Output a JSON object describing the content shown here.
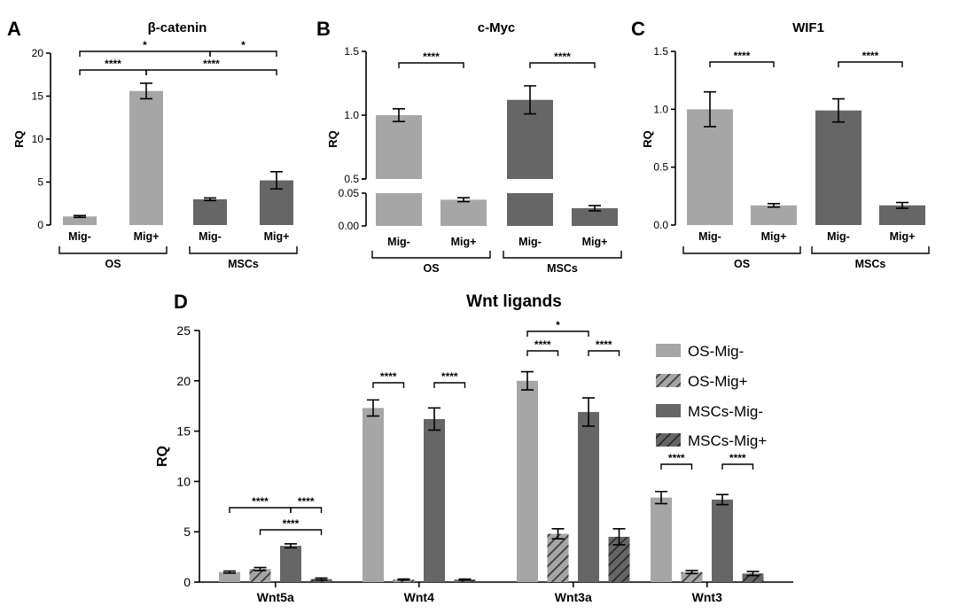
{
  "colors": {
    "light": "#a6a6a6",
    "dark": "#666666",
    "hatch_stroke": "#3a3a3a"
  },
  "chart_data": [
    {
      "panel": "A",
      "type": "bar",
      "title": "β-catenin",
      "ylabel": "RQ",
      "ylim": [
        0,
        20
      ],
      "yticks": [
        0,
        5,
        10,
        15,
        20
      ],
      "categories": [
        "Mig-",
        "Mig+",
        "Mig-",
        "Mig+"
      ],
      "groups": [
        "OS",
        "MSCs"
      ],
      "values": [
        1.0,
        15.6,
        3.0,
        5.2
      ],
      "errors": [
        0.1,
        0.9,
        0.15,
        1.0
      ],
      "fill": [
        "light",
        "light",
        "dark",
        "dark"
      ],
      "significance": [
        {
          "from": 0,
          "to": 1,
          "label": "****"
        },
        {
          "from": 1,
          "to": 3,
          "label": "****"
        },
        {
          "from": 0,
          "to": 2,
          "label": "*"
        },
        {
          "from": 2,
          "to": 3,
          "label": "*"
        }
      ]
    },
    {
      "panel": "B",
      "type": "bar",
      "title": "c-Myc",
      "ylabel": "RQ",
      "broken_axis": true,
      "lower_ylim": [
        0,
        0.05
      ],
      "upper_ylim": [
        0.5,
        1.5
      ],
      "yticks_lower": [
        "0.00",
        "0.05"
      ],
      "yticks_upper": [
        "0.5",
        "1.0",
        "1.5"
      ],
      "categories": [
        "Mig-",
        "Mig+",
        "Mig-",
        "Mig+"
      ],
      "groups": [
        "OS",
        "MSCs"
      ],
      "values": [
        1.0,
        0.04,
        1.12,
        0.027
      ],
      "errors": [
        0.05,
        0.003,
        0.11,
        0.004
      ],
      "fill": [
        "light",
        "light",
        "dark",
        "dark"
      ],
      "significance": [
        {
          "from": 0,
          "to": 1,
          "label": "****"
        },
        {
          "from": 2,
          "to": 3,
          "label": "****"
        }
      ]
    },
    {
      "panel": "C",
      "type": "bar",
      "title": "WIF1",
      "ylabel": "RQ",
      "ylim": [
        0,
        1.5
      ],
      "yticks": [
        "0.0",
        "0.5",
        "1.0",
        "1.5"
      ],
      "categories": [
        "Mig-",
        "Mig+",
        "Mig-",
        "Mig+"
      ],
      "groups": [
        "OS",
        "MSCs"
      ],
      "values": [
        1.0,
        0.17,
        0.99,
        0.17
      ],
      "errors": [
        0.15,
        0.015,
        0.1,
        0.025
      ],
      "fill": [
        "light",
        "light",
        "dark",
        "dark"
      ],
      "significance": [
        {
          "from": 0,
          "to": 1,
          "label": "****"
        },
        {
          "from": 2,
          "to": 3,
          "label": "****"
        }
      ]
    },
    {
      "panel": "D",
      "type": "bar",
      "title": "Wnt ligands",
      "ylabel": "RQ",
      "ylim": [
        0,
        25
      ],
      "yticks": [
        0,
        5,
        10,
        15,
        20,
        25
      ],
      "categories": [
        "Wnt5a",
        "Wnt4",
        "Wnt3a",
        "Wnt3"
      ],
      "legend_position": "top-right",
      "series": [
        {
          "name": "OS-Mig-",
          "fill": "light",
          "hatched": false,
          "values": [
            1.0,
            17.3,
            20.0,
            8.4
          ],
          "errors": [
            0.1,
            0.8,
            0.9,
            0.6
          ]
        },
        {
          "name": "OS-Mig+",
          "fill": "light",
          "hatched": true,
          "values": [
            1.3,
            0.25,
            4.8,
            1.0
          ],
          "errors": [
            0.15,
            0.05,
            0.5,
            0.15
          ]
        },
        {
          "name": "MSCs-Mig-",
          "fill": "dark",
          "hatched": false,
          "values": [
            3.6,
            16.2,
            16.9,
            8.2
          ],
          "errors": [
            0.2,
            1.1,
            1.4,
            0.5
          ]
        },
        {
          "name": "MSCs-Mig+",
          "fill": "dark",
          "hatched": true,
          "values": [
            0.3,
            0.25,
            4.5,
            0.85
          ],
          "errors": [
            0.1,
            0.05,
            0.8,
            0.2
          ]
        }
      ],
      "significance": [
        {
          "cat": 0,
          "from": 0,
          "to": 2,
          "label": "****"
        },
        {
          "cat": 0,
          "from": 2,
          "to": 3,
          "label": "****"
        },
        {
          "cat": 0,
          "from": 1,
          "to": 3,
          "label": "****"
        },
        {
          "cat": 1,
          "from": 0,
          "to": 1,
          "label": "****"
        },
        {
          "cat": 1,
          "from": 2,
          "to": 3,
          "label": "****"
        },
        {
          "cat": 2,
          "from": 0,
          "to": 2,
          "label": "*"
        },
        {
          "cat": 2,
          "from": 0,
          "to": 1,
          "label": "****"
        },
        {
          "cat": 2,
          "from": 2,
          "to": 3,
          "label": "****"
        },
        {
          "cat": 3,
          "from": 0,
          "to": 1,
          "label": "****"
        },
        {
          "cat": 3,
          "from": 2,
          "to": 3,
          "label": "****"
        }
      ]
    }
  ]
}
